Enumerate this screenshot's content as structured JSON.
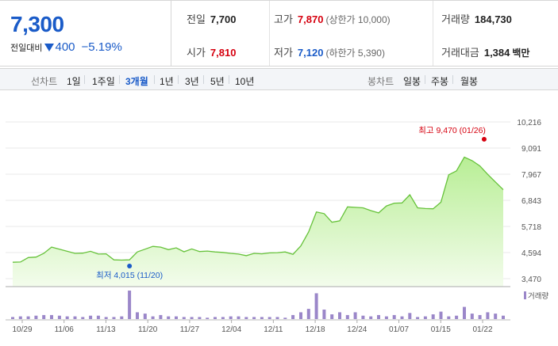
{
  "quote": {
    "price": "7,300",
    "change_label": "전일대비",
    "change": "400",
    "change_pct": "−5.19%",
    "prev_close_label": "전일",
    "prev_close": "7,700",
    "open_label": "시가",
    "open": "7,810",
    "high_label": "고가",
    "high": "7,870",
    "upper_limit": "(상한가 10,000)",
    "low_label": "저가",
    "low": "7,120",
    "lower_limit": "(하한가 5,390)",
    "volume_label": "거래량",
    "volume": "184,730",
    "amount_label": "거래대금",
    "amount": "1,384",
    "amount_unit": "백만"
  },
  "toolbar": {
    "line_label": "선차트",
    "line_options": [
      "1일",
      "1주일",
      "3개월",
      "1년",
      "3년",
      "5년",
      "10년"
    ],
    "active_line": "3개월",
    "candle_label": "봉차트",
    "candle_options": [
      "일봉",
      "주봉",
      "월봉"
    ]
  },
  "colors": {
    "up": "#d6000f",
    "down": "#1a5bc8",
    "line": "#66c23a",
    "fill_top": "#b8ee95",
    "fill_bottom": "#f3fcec",
    "volume": "#9b87c9"
  },
  "chart_data": {
    "type": "area",
    "y_ticks": [
      "10,216",
      "9,091",
      "7,967",
      "6,843",
      "5,718",
      "4,594",
      "3,470"
    ],
    "ylim": [
      3470,
      10216
    ],
    "x_tick_labels": [
      "10/29",
      "11/06",
      "11/13",
      "11/20",
      "11/27",
      "12/04",
      "12/11",
      "12/18",
      "12/24",
      "01/07",
      "01/15",
      "01/22"
    ],
    "price": [
      4180,
      4190,
      4380,
      4400,
      4560,
      4830,
      4740,
      4650,
      4560,
      4570,
      4650,
      4530,
      4540,
      4280,
      4270,
      4280,
      4620,
      4740,
      4860,
      4830,
      4720,
      4800,
      4630,
      4750,
      4640,
      4660,
      4620,
      4600,
      4560,
      4530,
      4460,
      4560,
      4540,
      4580,
      4590,
      4620,
      4520,
      4880,
      5480,
      6340,
      6270,
      5900,
      5960,
      6560,
      6540,
      6520,
      6400,
      6300,
      6600,
      6720,
      6730,
      7080,
      6520,
      6490,
      6480,
      6760,
      7940,
      8110,
      8700,
      8550,
      8320,
      7960,
      7630,
      7300
    ],
    "volume": [
      3,
      4,
      4,
      5,
      6,
      6,
      5,
      4,
      4,
      3,
      5,
      5,
      3,
      3,
      4,
      42,
      10,
      8,
      4,
      6,
      4,
      4,
      3,
      3,
      3,
      2,
      3,
      3,
      4,
      4,
      3,
      3,
      3,
      3,
      3,
      2,
      6,
      10,
      15,
      38,
      14,
      7,
      10,
      6,
      10,
      5,
      4,
      6,
      4,
      6,
      4,
      9,
      3,
      4,
      7,
      11,
      4,
      5,
      18,
      8,
      6,
      10,
      8,
      5
    ],
    "volume_label": "거래량",
    "annotations": {
      "high": "최고 9,470 (01/26)",
      "low": "최저 4,015 (11/20)"
    },
    "high_point": {
      "index": 58,
      "value": 9470
    },
    "low_point": {
      "index": 15,
      "value": 4015
    }
  }
}
